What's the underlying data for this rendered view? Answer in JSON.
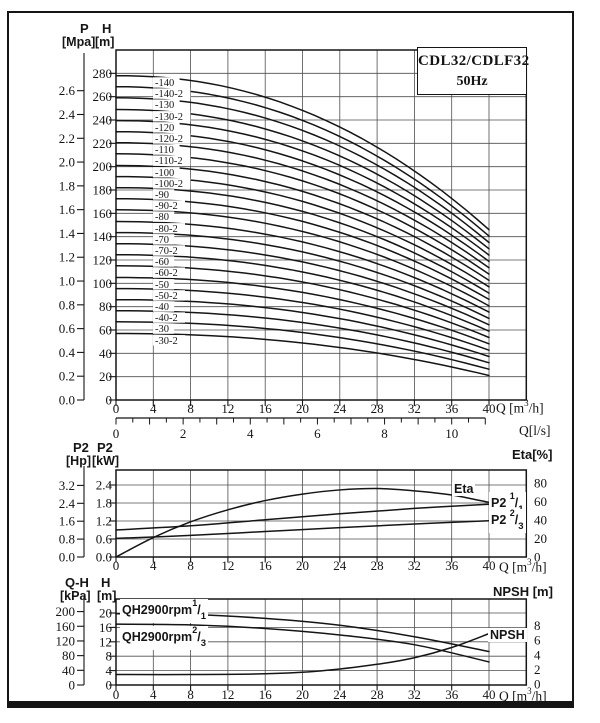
{
  "colors": {
    "ink": "#151515",
    "grid": "#4f4f4f",
    "background": "#ffffff"
  },
  "title_box": {
    "model": "CDL32/CDLF32",
    "frequency": "50Hz"
  },
  "chart_data": [
    {
      "type": "line",
      "name": "head-curves",
      "y_left_primary": {
        "name": "P",
        "unit": "[Mpa]",
        "ticks": [
          "0.0",
          "0.2",
          "0.4",
          "0.6",
          "0.8",
          "1.0",
          "1.2",
          "1.4",
          "1.6",
          "1.8",
          "2.0",
          "2.2",
          "2.4",
          "2.6"
        ]
      },
      "y_left_secondary": {
        "name": "H",
        "unit": "[m]",
        "ticks": [
          0,
          20,
          40,
          60,
          80,
          100,
          120,
          140,
          160,
          180,
          200,
          220,
          240,
          260,
          280
        ],
        "max": 300
      },
      "x_bottom": {
        "unit": {
          "pre": "Q [m",
          "sup": "3",
          "post": "/h]"
        },
        "ticks": [
          0,
          4,
          8,
          12,
          16,
          20,
          24,
          28,
          32,
          36,
          40
        ],
        "max": 44
      },
      "x_secondary": {
        "label": "Q[l/s]",
        "ticks": [
          0,
          2,
          4,
          6,
          8,
          10
        ],
        "max": 11,
        "minor_step": 0.5
      },
      "curves": [
        {
          "label": "-140",
          "h0": 278,
          "h40": 146
        },
        {
          "label": "-140-2",
          "h0": 268.5,
          "h40": 140.5
        },
        {
          "label": "-130",
          "h0": 259,
          "h40": 135
        },
        {
          "label": "-130-2",
          "h0": 249,
          "h40": 129.6
        },
        {
          "label": "-120",
          "h0": 239.5,
          "h40": 124.2
        },
        {
          "label": "-120-2",
          "h0": 230,
          "h40": 118.8
        },
        {
          "label": "-110",
          "h0": 220.5,
          "h40": 113.3
        },
        {
          "label": "-110-2",
          "h0": 211,
          "h40": 107.9
        },
        {
          "label": "-100",
          "h0": 201,
          "h40": 102.5
        },
        {
          "label": "-100-2",
          "h0": 191.5,
          "h40": 97
        },
        {
          "label": "-90",
          "h0": 182,
          "h40": 91.6
        },
        {
          "label": "-90-2",
          "h0": 172.5,
          "h40": 86.2
        },
        {
          "label": "-80",
          "h0": 163,
          "h40": 80.7
        },
        {
          "label": "-80-2",
          "h0": 153,
          "h40": 75.3
        },
        {
          "label": "-70",
          "h0": 143.5,
          "h40": 69.9
        },
        {
          "label": "-70-2",
          "h0": 134,
          "h40": 64.5
        },
        {
          "label": "-60",
          "h0": 124.5,
          "h40": 59
        },
        {
          "label": "-60-2",
          "h0": 115,
          "h40": 53.6
        },
        {
          "label": "-50",
          "h0": 105,
          "h40": 48.2
        },
        {
          "label": "-50-2",
          "h0": 95.5,
          "h40": 42.7
        },
        {
          "label": "-40",
          "h0": 86,
          "h40": 37.3
        },
        {
          "label": "-40-2",
          "h0": 76.5,
          "h40": 31.9
        },
        {
          "label": "-30",
          "h0": 67,
          "h40": 26.4
        },
        {
          "label": "-30-2",
          "h0": 57,
          "h40": 21
        }
      ]
    },
    {
      "type": "line",
      "name": "power-efficiency-curves",
      "y_left_primary": {
        "name": "P2",
        "unit": "[Hp]",
        "ticks": [
          "0.0",
          "0.8",
          "1.6",
          "2.4",
          "3.2"
        ]
      },
      "y_left_secondary": {
        "name": "P2",
        "unit": "[kW]",
        "ticks": [
          "0.0",
          "0.6",
          "1.2",
          "1.8",
          "2.4"
        ]
      },
      "y_right": {
        "label": "Eta[%]",
        "ticks": [
          0,
          20,
          40,
          60,
          80
        ]
      },
      "x_bottom": {
        "unit": {
          "pre": "Q [m",
          "sup": "3",
          "post": "/h]"
        },
        "ticks": [
          0,
          4,
          8,
          12,
          16,
          20,
          24,
          28,
          32,
          36,
          40
        ],
        "max": 44
      },
      "series": [
        {
          "name": "Eta",
          "axis": "eta",
          "points": [
            [
              0,
              0
            ],
            [
              4,
              21
            ],
            [
              8,
              38
            ],
            [
              12,
              51
            ],
            [
              16,
              61
            ],
            [
              20,
              68
            ],
            [
              24,
              72.5
            ],
            [
              28,
              74
            ],
            [
              32,
              71.5
            ],
            [
              36,
              67
            ],
            [
              40,
              59
            ]
          ]
        },
        {
          "name": "P2 1/1",
          "axis": "kw",
          "points": [
            [
              0,
              0.9
            ],
            [
              8,
              1.04
            ],
            [
              16,
              1.24
            ],
            [
              24,
              1.44
            ],
            [
              32,
              1.62
            ],
            [
              40,
              1.76
            ]
          ]
        },
        {
          "name": "P2 2/3",
          "axis": "kw",
          "points": [
            [
              0,
              0.62
            ],
            [
              8,
              0.72
            ],
            [
              16,
              0.85
            ],
            [
              24,
              0.98
            ],
            [
              32,
              1.1
            ],
            [
              40,
              1.21
            ]
          ]
        }
      ],
      "labels": {
        "eta_label": "Eta",
        "p2_full": {
          "base": "P2",
          "sup": "1",
          "slash": "/",
          "sub": "1"
        },
        "p2_partial": {
          "base": "P2",
          "sup": "2",
          "slash": "/",
          "sub": "3"
        }
      }
    },
    {
      "type": "line",
      "name": "qh-npsh-curves",
      "y_left_primary": {
        "name": "Q-H",
        "unit": "[kPa]",
        "ticks": [
          0,
          40,
          80,
          120,
          160,
          200
        ]
      },
      "y_left_secondary": {
        "name": "H",
        "unit": "[m]",
        "ticks": [
          0,
          4,
          8,
          12,
          16,
          20
        ]
      },
      "y_right": {
        "label": "NPSH [m]",
        "ticks": [
          0,
          2,
          4,
          6,
          8
        ]
      },
      "x_bottom": {
        "unit": {
          "pre": "Q [m",
          "sup": "3",
          "post": "/h]"
        },
        "ticks": [
          0,
          4,
          8,
          12,
          16,
          20,
          24,
          28,
          32,
          36,
          40
        ],
        "max": 44
      },
      "series": [
        {
          "name": "QH2900rpm 1/1",
          "axis": "m",
          "points": [
            [
              0,
              19.8
            ],
            [
              8,
              19.6
            ],
            [
              16,
              18.5
            ],
            [
              24,
              16.6
            ],
            [
              32,
              13.4
            ],
            [
              40,
              9.3
            ]
          ]
        },
        {
          "name": "QH2900rpm 2/3",
          "axis": "m",
          "points": [
            [
              0,
              16.9
            ],
            [
              8,
              16.7
            ],
            [
              16,
              15.7
            ],
            [
              24,
              13.9
            ],
            [
              32,
              11.2
            ],
            [
              40,
              6.4
            ]
          ]
        },
        {
          "name": "NPSH",
          "axis": "npsh",
          "points": [
            [
              0,
              1.3
            ],
            [
              8,
              1.3
            ],
            [
              16,
              1.4
            ],
            [
              22,
              1.8
            ],
            [
              28,
              2.7
            ],
            [
              32,
              3.6
            ],
            [
              36,
              5.0
            ],
            [
              40,
              6.9
            ]
          ]
        }
      ],
      "labels": {
        "qh_full": {
          "base": "QH2900rpm",
          "sup": "1",
          "slash": "/",
          "sub": "1"
        },
        "qh_partial": {
          "base": "QH2900rpm",
          "sup": "2",
          "slash": "/",
          "sub": "3"
        },
        "npsh_label": "NPSH"
      }
    }
  ]
}
